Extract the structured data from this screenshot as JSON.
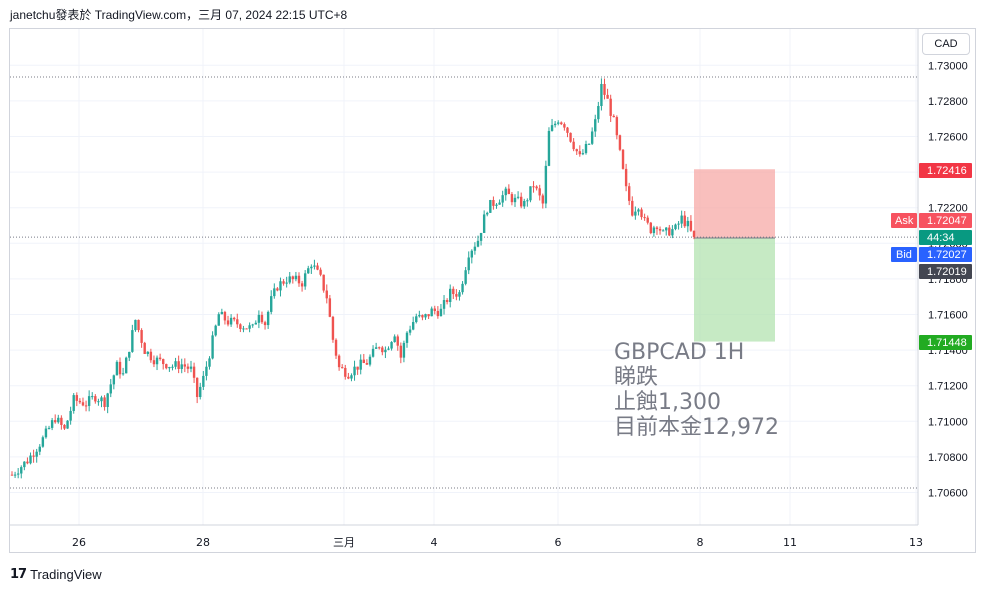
{
  "header": {
    "text": "janetchu發表於 TradingView.com，三月 07, 2024 22:15 UTC+8"
  },
  "currency": "CAD",
  "footer": {
    "brand": "TradingView"
  },
  "annotation": {
    "line1": "GBPCAD 1H",
    "line2": "睇跌",
    "line3": "止蝕1,300",
    "line4": "目前本金12,972"
  },
  "colors": {
    "up": "#26a69a",
    "down": "#ef5350",
    "risk": "#f7a9a7",
    "reward": "#b3e3b0"
  },
  "chart_data": {
    "type": "candlestick",
    "symbol": "GBPCAD",
    "timeframe": "1H",
    "ylim": [
      1.7048,
      1.7322
    ],
    "y_ticks": [
      "1.73000",
      "1.72800",
      "1.72600",
      "1.72400",
      "1.72200",
      "1.72000",
      "1.71800",
      "1.71600",
      "1.71400",
      "1.71200",
      "1.71000",
      "1.70800",
      "1.70600"
    ],
    "x_ticks": [
      "26",
      "28",
      "三月",
      "4",
      "6",
      "8",
      "11",
      "13"
    ],
    "price_labels": {
      "stop": "1.72416",
      "ask": {
        "label": "Ask",
        "value": "1.72047"
      },
      "countdown": "44:34",
      "bid": {
        "label": "Bid",
        "value": "1.72027"
      },
      "last": "1.72019",
      "target": "1.71448"
    },
    "position": {
      "entry": 1.7203,
      "stop": 1.72416,
      "target": 1.71448
    },
    "close_path": [
      [
        0,
        1.707
      ],
      [
        5,
        1.7078
      ],
      [
        10,
        1.709
      ],
      [
        14,
        1.7102
      ],
      [
        17,
        1.7095
      ],
      [
        20,
        1.7112
      ],
      [
        24,
        1.711
      ],
      [
        27,
        1.7114
      ],
      [
        30,
        1.7111
      ],
      [
        34,
        1.7131
      ],
      [
        36,
        1.7126
      ],
      [
        40,
        1.7157
      ],
      [
        43,
        1.714
      ],
      [
        46,
        1.7135
      ],
      [
        49,
        1.7133
      ],
      [
        52,
        1.7131
      ],
      [
        55,
        1.7132
      ],
      [
        58,
        1.7129
      ],
      [
        60,
        1.7114
      ],
      [
        62,
        1.7124
      ],
      [
        64,
        1.7138
      ],
      [
        67,
        1.716
      ],
      [
        70,
        1.7156
      ],
      [
        73,
        1.7155
      ],
      [
        76,
        1.7153
      ],
      [
        78,
        1.7152
      ],
      [
        80,
        1.7162
      ],
      [
        82,
        1.7155
      ],
      [
        84,
        1.7168
      ],
      [
        86,
        1.7176
      ],
      [
        89,
        1.718
      ],
      [
        92,
        1.7179
      ],
      [
        94,
        1.7178
      ],
      [
        97,
        1.7189
      ],
      [
        100,
        1.718
      ],
      [
        102,
        1.717
      ],
      [
        104,
        1.7146
      ],
      [
        106,
        1.713
      ],
      [
        109,
        1.7127
      ],
      [
        112,
        1.7131
      ],
      [
        115,
        1.7133
      ],
      [
        117,
        1.7138
      ],
      [
        119,
        1.7143
      ],
      [
        121,
        1.714
      ],
      [
        124,
        1.715
      ],
      [
        126,
        1.7136
      ],
      [
        128,
        1.715
      ],
      [
        131,
        1.7159
      ],
      [
        133,
        1.7157
      ],
      [
        136,
        1.7162
      ],
      [
        139,
        1.7162
      ],
      [
        142,
        1.7172
      ],
      [
        145,
        1.7172
      ],
      [
        148,
        1.7195
      ],
      [
        151,
        1.7202
      ],
      [
        154,
        1.722
      ],
      [
        157,
        1.7224
      ],
      [
        160,
        1.7228
      ],
      [
        163,
        1.7224
      ],
      [
        166,
        1.7222
      ],
      [
        169,
        1.7233
      ],
      [
        172,
        1.7222
      ],
      [
        174,
        1.7262
      ],
      [
        177,
        1.727
      ],
      [
        179,
        1.7267
      ],
      [
        181,
        1.7259
      ],
      [
        184,
        1.7248
      ],
      [
        187,
        1.7256
      ],
      [
        189,
        1.7268
      ],
      [
        191,
        1.7288
      ],
      [
        193,
        1.728
      ],
      [
        195,
        1.7268
      ],
      [
        197,
        1.725
      ],
      [
        199,
        1.723
      ],
      [
        201,
        1.7218
      ],
      [
        203,
        1.7222
      ],
      [
        205,
        1.7212
      ],
      [
        207,
        1.7208
      ],
      [
        209,
        1.7211
      ],
      [
        211,
        1.7205
      ],
      [
        213,
        1.7207
      ],
      [
        215,
        1.7208
      ],
      [
        217,
        1.7214
      ],
      [
        219,
        1.721
      ],
      [
        221,
        1.7202
      ]
    ]
  }
}
